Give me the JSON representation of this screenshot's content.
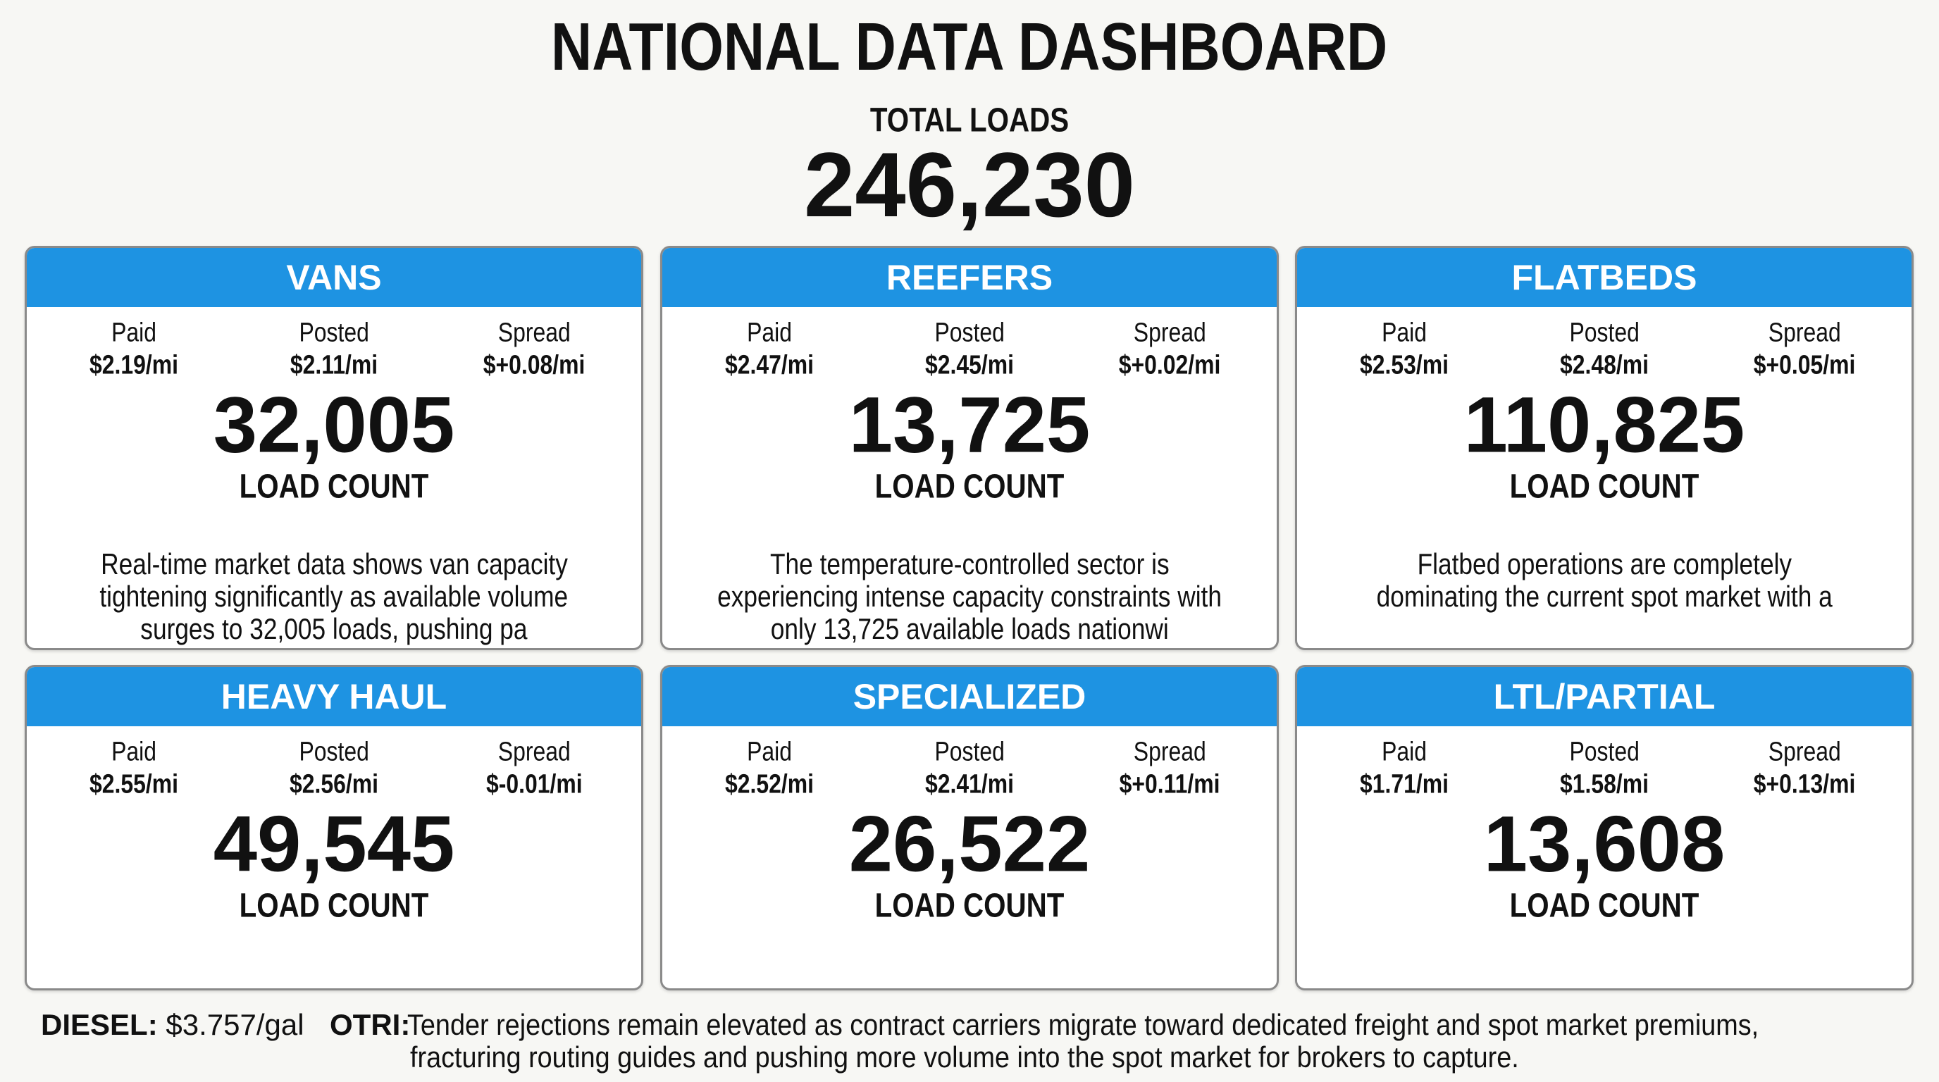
{
  "header": {
    "title": "NATIONAL DATA DASHBOARD",
    "total_label": "TOTAL LOADS",
    "total_value": "246,230"
  },
  "cards": [
    {
      "name": "VANS",
      "paid_label": "Paid",
      "paid": "$2.19/mi",
      "posted_label": "Posted",
      "posted": "$2.11/mi",
      "spread_label": "Spread",
      "spread": "$+0.08/mi",
      "load_count": "32,005",
      "load_count_label": "LOAD COUNT",
      "description": [
        "Real-time market data shows van capacity",
        "tightening significantly as available volume",
        "surges to 32,005 loads, pushing pa"
      ]
    },
    {
      "name": "REEFERS",
      "paid_label": "Paid",
      "paid": "$2.47/mi",
      "posted_label": "Posted",
      "posted": "$2.45/mi",
      "spread_label": "Spread",
      "spread": "$+0.02/mi",
      "load_count": "13,725",
      "load_count_label": "LOAD COUNT",
      "description": [
        "The temperature-controlled sector is",
        "experiencing intense capacity constraints with",
        "only 13,725 available loads nationwi"
      ]
    },
    {
      "name": "FLATBEDS",
      "paid_label": "Paid",
      "paid": "$2.53/mi",
      "posted_label": "Posted",
      "posted": "$2.48/mi",
      "spread_label": "Spread",
      "spread": "$+0.05/mi",
      "load_count": "110,825",
      "load_count_label": "LOAD COUNT",
      "description": [
        "Flatbed operations are completely",
        "dominating the current spot market with a"
      ]
    },
    {
      "name": "HEAVY HAUL",
      "paid_label": "Paid",
      "paid": "$2.55/mi",
      "posted_label": "Posted",
      "posted": "$2.56/mi",
      "spread_label": "Spread",
      "spread": "$-0.01/mi",
      "load_count": "49,545",
      "load_count_label": "LOAD COUNT"
    },
    {
      "name": "SPECIALIZED",
      "paid_label": "Paid",
      "paid": "$2.52/mi",
      "posted_label": "Posted",
      "posted": "$2.41/mi",
      "spread_label": "Spread",
      "spread": "$+0.11/mi",
      "load_count": "26,522",
      "load_count_label": "LOAD COUNT"
    },
    {
      "name": "LTL/PARTIAL",
      "paid_label": "Paid",
      "paid": "$1.71/mi",
      "posted_label": "Posted",
      "posted": "$1.58/mi",
      "spread_label": "Spread",
      "spread": "$+0.13/mi",
      "load_count": "13,608",
      "load_count_label": "LOAD COUNT"
    }
  ],
  "footer": {
    "diesel_label": "DIESEL:",
    "diesel": "$3.757/gal",
    "otri_label": "OTRI:",
    "otri": [
      "Tender rejections remain elevated as contract carriers migrate toward dedicated freight and spot market premiums,",
      "fracturing routing guides and pushing more volume into the spot market for brokers to capture."
    ]
  }
}
